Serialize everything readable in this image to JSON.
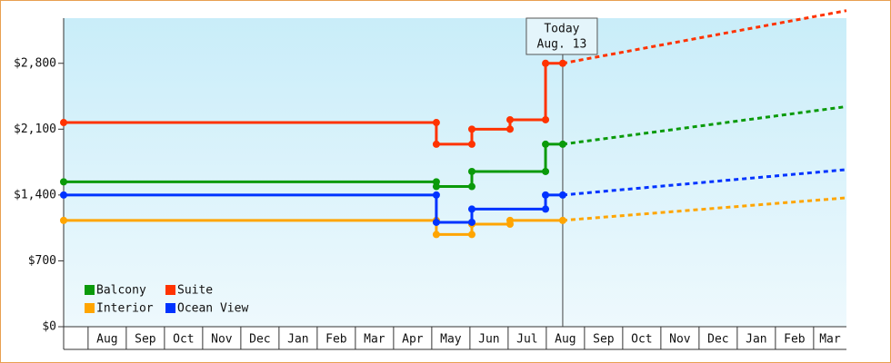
{
  "chart_data": {
    "type": "step-line",
    "xlim": [
      0.36,
      20.86
    ],
    "xticks": [
      {
        "value": 1,
        "label": "Aug"
      },
      {
        "value": 2,
        "label": "Sep"
      },
      {
        "value": 3,
        "label": "Oct"
      },
      {
        "value": 4,
        "label": "Nov"
      },
      {
        "value": 5,
        "label": "Dec"
      },
      {
        "value": 6,
        "label": "Jan"
      },
      {
        "value": 7,
        "label": "Feb"
      },
      {
        "value": 8,
        "label": "Mar"
      },
      {
        "value": 9,
        "label": "Apr"
      },
      {
        "value": 10,
        "label": "May"
      },
      {
        "value": 11,
        "label": "Jun"
      },
      {
        "value": 12,
        "label": "Jul"
      },
      {
        "value": 13,
        "label": "Aug"
      },
      {
        "value": 14,
        "label": "Sep"
      },
      {
        "value": 15,
        "label": "Oct"
      },
      {
        "value": 16,
        "label": "Nov"
      },
      {
        "value": 17,
        "label": "Dec"
      },
      {
        "value": 18,
        "label": "Jan"
      },
      {
        "value": 19,
        "label": "Feb"
      },
      {
        "value": 20,
        "label": "Mar"
      }
    ],
    "ylim": [
      0,
      3280
    ],
    "yticks": [
      {
        "value": 0,
        "label": "$0"
      },
      {
        "value": 700,
        "label": "$700"
      },
      {
        "value": 1400,
        "label": "$1,400"
      },
      {
        "value": 2100,
        "label": "$2,100"
      },
      {
        "value": 2800,
        "label": "$2,800"
      }
    ],
    "x": [
      0.36,
      10.12,
      11.05,
      12.05,
      12.98,
      13.43
    ],
    "forecast_x": [
      13.43,
      20.86
    ],
    "today": {
      "lines": [
        "Today",
        "Aug. 13"
      ],
      "x": 13.43
    },
    "legend": "lower left",
    "series": [
      {
        "name": "Balcony",
        "color": "#0a9a0a",
        "values": [
          1540,
          1490,
          1650,
          1650,
          1940,
          1940
        ],
        "forecast": [
          1940,
          2340
        ]
      },
      {
        "name": "Suite",
        "color": "#ff3300",
        "values": [
          2170,
          1940,
          2100,
          2200,
          2800,
          2800
        ],
        "forecast": [
          2800,
          3360
        ]
      },
      {
        "name": "Interior",
        "color": "#ffa500",
        "values": [
          1130,
          980,
          1090,
          1130,
          1130,
          1130
        ],
        "forecast": [
          1130,
          1370
        ]
      },
      {
        "name": "Ocean View",
        "color": "#0033ff",
        "values": [
          1400,
          1110,
          1250,
          1250,
          1400,
          1400
        ],
        "forecast": [
          1400,
          1670
        ]
      }
    ]
  }
}
